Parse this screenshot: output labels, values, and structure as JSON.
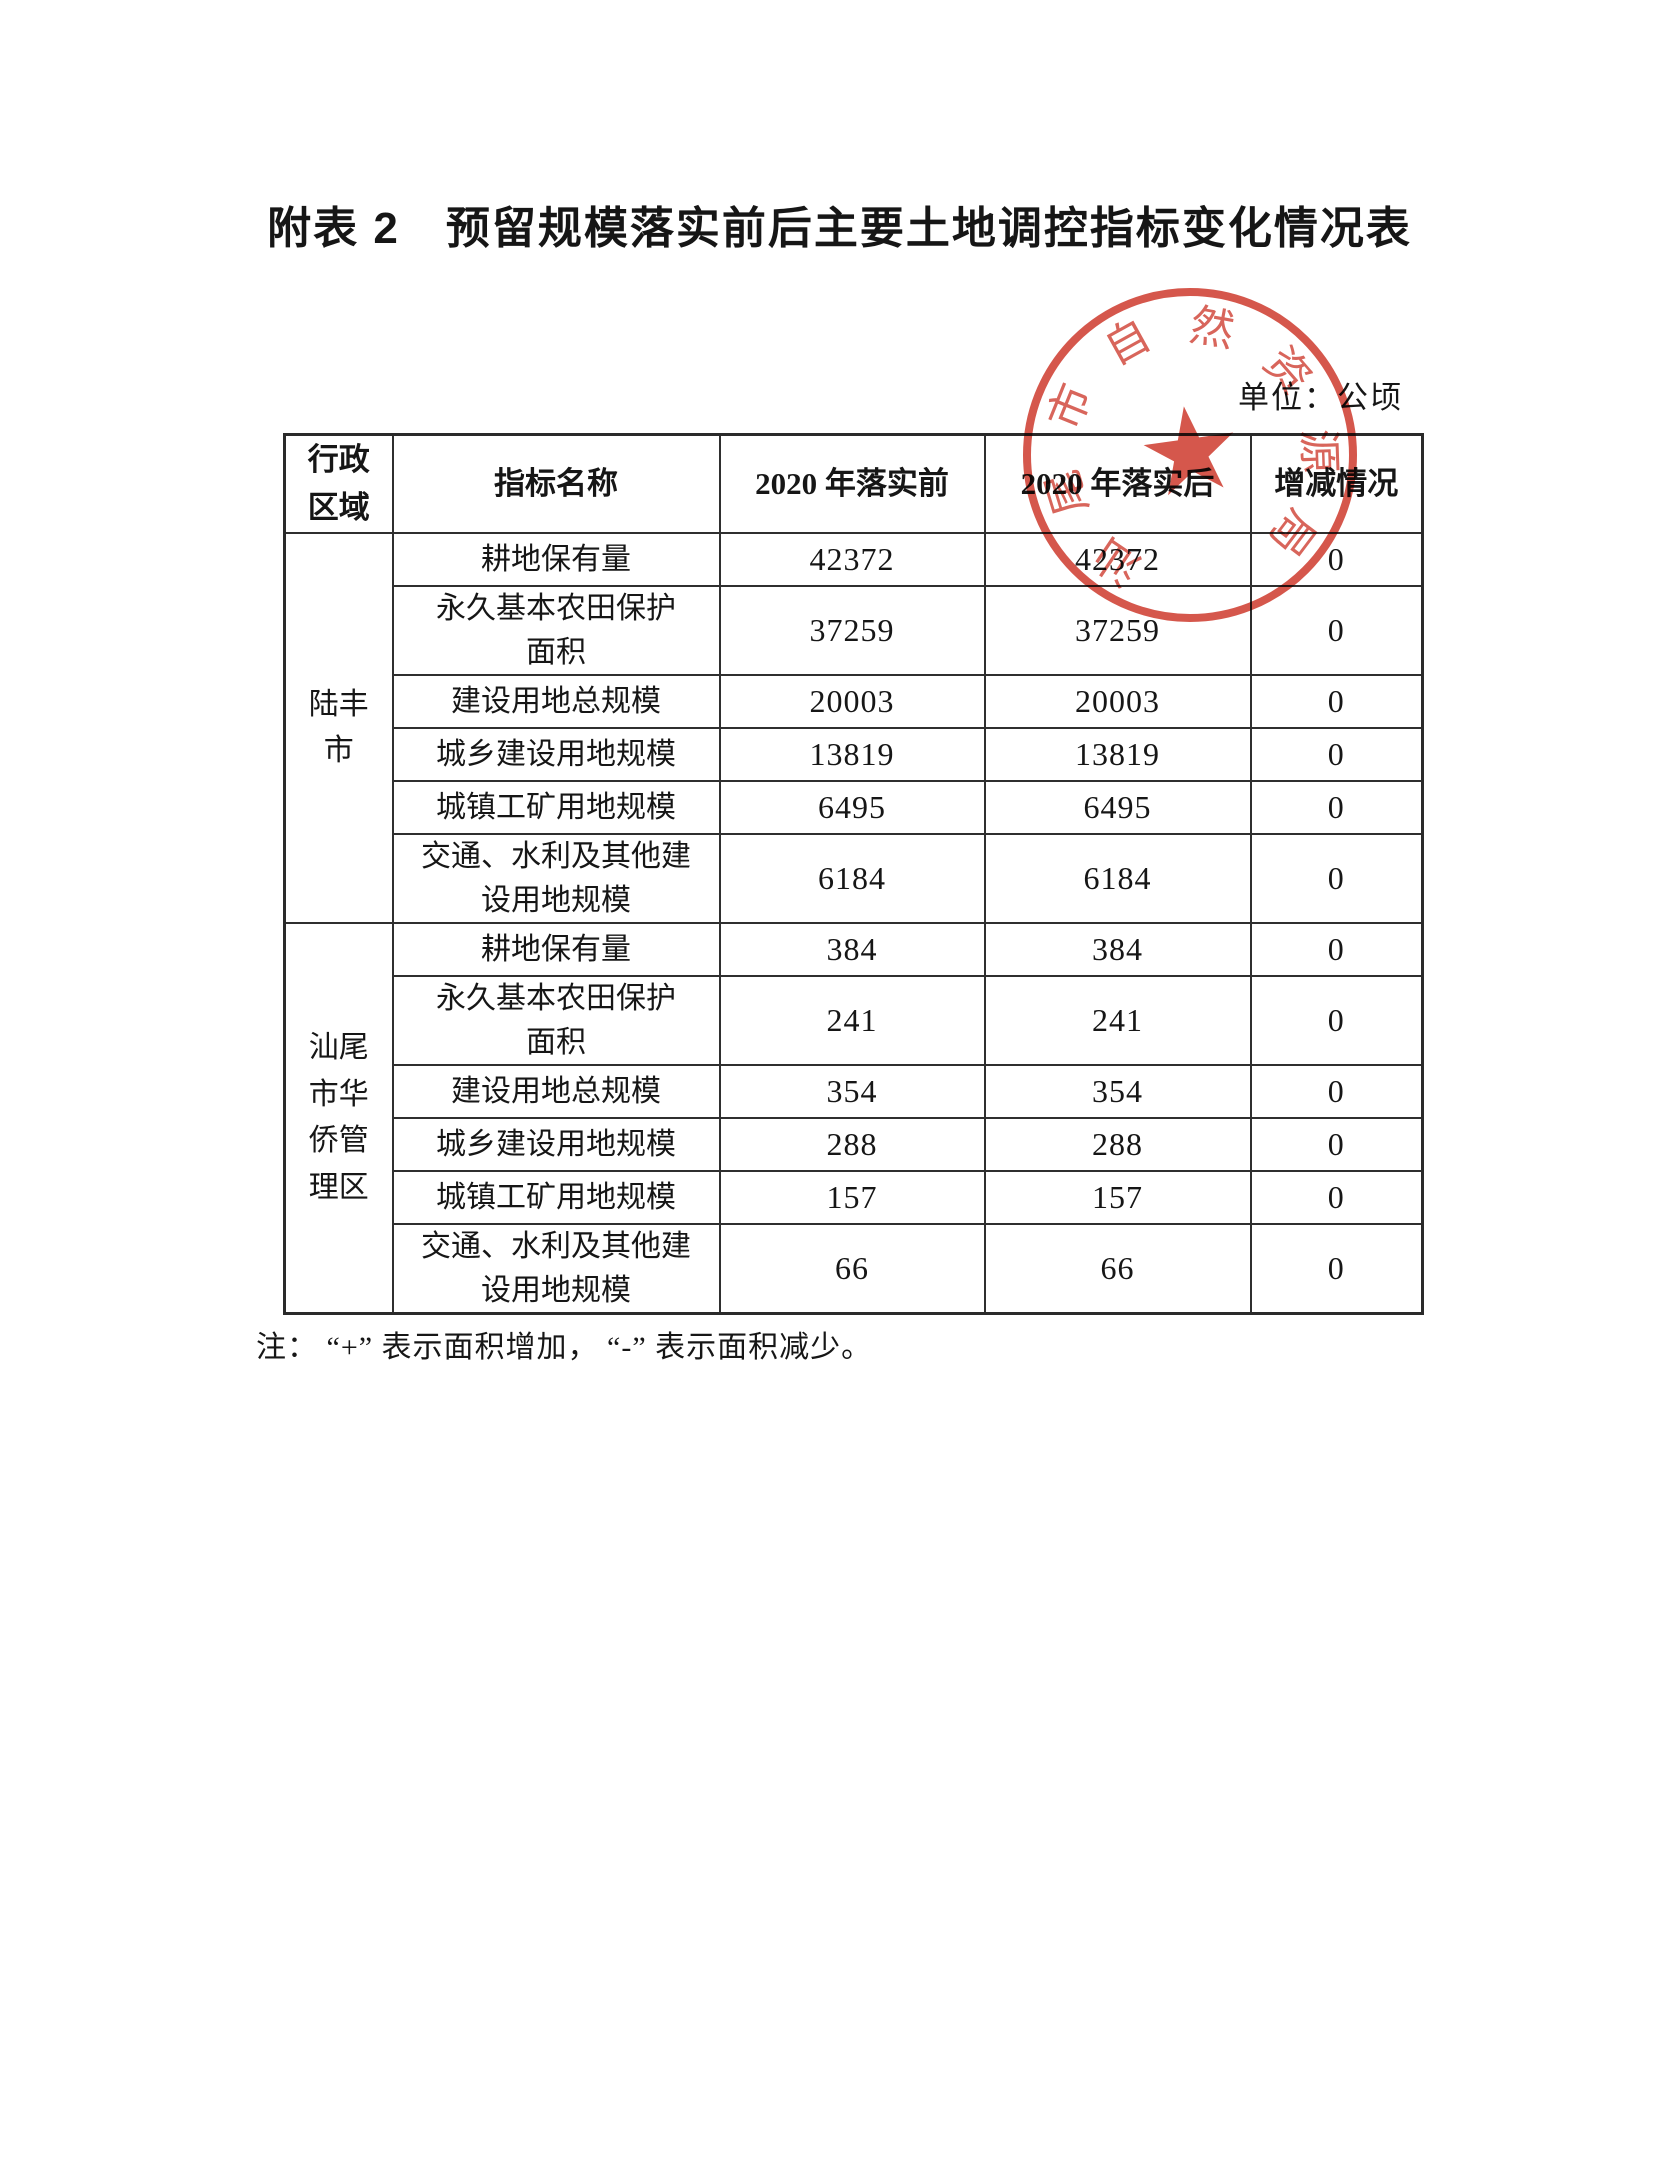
{
  "page": {
    "title": "附表 2　预留规模落实前后主要土地调控指标变化情况表",
    "unit_label": "单位：公顷",
    "note": "注： “+” 表示面积增加， “-” 表示面积减少。"
  },
  "table": {
    "headers": [
      "行政区域",
      "指标名称",
      "2020 年落实前",
      "2020 年落实后",
      "增减情况"
    ],
    "groups": [
      {
        "region": "陆丰市",
        "rows": [
          {
            "indicator": "耕地保有量",
            "before": "42372",
            "after": "42372",
            "change": "0"
          },
          {
            "indicator": "永久基本农田保护\n面积",
            "before": "37259",
            "after": "37259",
            "change": "0"
          },
          {
            "indicator": "建设用地总规模",
            "before": "20003",
            "after": "20003",
            "change": "0"
          },
          {
            "indicator": "城乡建设用地规模",
            "before": "13819",
            "after": "13819",
            "change": "0"
          },
          {
            "indicator": "城镇工矿用地规模",
            "before": "6495",
            "after": "6495",
            "change": "0"
          },
          {
            "indicator": "交通、水利及其他建\n设用地规模",
            "before": "6184",
            "after": "6184",
            "change": "0"
          }
        ]
      },
      {
        "region": "汕尾市华侨管理区",
        "rows": [
          {
            "indicator": "耕地保有量",
            "before": "384",
            "after": "384",
            "change": "0"
          },
          {
            "indicator": "永久基本农田保护\n面积",
            "before": "241",
            "after": "241",
            "change": "0"
          },
          {
            "indicator": "建设用地总规模",
            "before": "354",
            "after": "354",
            "change": "0"
          },
          {
            "indicator": "城乡建设用地规模",
            "before": "288",
            "after": "288",
            "change": "0"
          },
          {
            "indicator": "城镇工矿用地规模",
            "before": "157",
            "after": "157",
            "change": "0"
          },
          {
            "indicator": "交通、水利及其他建\n设用地规模",
            "before": "66",
            "after": "66",
            "change": "0"
          }
        ]
      }
    ]
  },
  "seal": {
    "characters": [
      "汕",
      "尾",
      "市",
      "自",
      "然",
      "资",
      "源",
      "局"
    ],
    "star_glyph": "★",
    "color": "#cf4033"
  }
}
